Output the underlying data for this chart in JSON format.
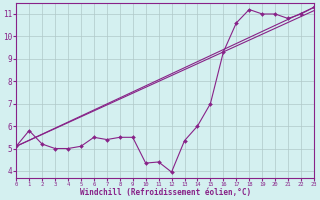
{
  "line1_x": [
    0,
    23
  ],
  "line1_y": [
    5.1,
    11.15
  ],
  "line2_x": [
    0,
    23
  ],
  "line2_y": [
    5.1,
    11.3
  ],
  "line3_x": [
    0,
    1,
    2,
    3,
    4,
    5,
    6,
    7,
    8,
    9,
    10,
    11,
    12,
    13,
    14,
    15,
    16,
    17,
    18,
    19,
    20,
    21,
    22,
    23
  ],
  "line3_y": [
    5.1,
    5.8,
    5.2,
    5.0,
    5.0,
    5.1,
    5.5,
    5.4,
    5.5,
    5.5,
    4.35,
    4.4,
    3.95,
    5.35,
    6.0,
    7.0,
    9.3,
    10.6,
    11.2,
    11.0,
    11.0,
    10.8,
    11.0,
    11.3
  ],
  "line_color": "#882288",
  "marker": "D",
  "marker_size": 2,
  "xlim": [
    0,
    23
  ],
  "ylim": [
    3.7,
    11.5
  ],
  "xlabel": "Windchill (Refroidissement éolien,°C)",
  "xticks": [
    0,
    1,
    2,
    3,
    4,
    5,
    6,
    7,
    8,
    9,
    10,
    11,
    12,
    13,
    14,
    15,
    16,
    17,
    18,
    19,
    20,
    21,
    22,
    23
  ],
  "yticks": [
    4,
    5,
    6,
    7,
    8,
    9,
    10,
    11
  ],
  "bg_color": "#d4f0f0",
  "grid_color": "#b0c8c8",
  "line_width": 0.8,
  "xlabel_fontsize": 5.5,
  "xtick_fontsize": 4.0,
  "ytick_fontsize": 5.5
}
